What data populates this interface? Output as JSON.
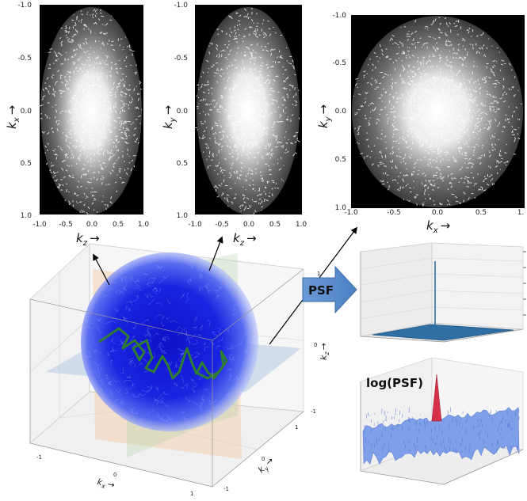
{
  "panels": [
    {
      "ylabel": "k",
      "ylabel_sub": "x",
      "xlabel": "k",
      "xlabel_sub": "z",
      "xticks": [
        "-1.0",
        "-0.5",
        "0.0",
        "0.5",
        "1.0"
      ],
      "yticks": [
        "-1.0",
        "-0.5",
        "0.0",
        "0.5",
        "1.0"
      ]
    },
    {
      "ylabel": "k",
      "ylabel_sub": "y",
      "xlabel": "k",
      "xlabel_sub": "z",
      "xticks": [
        "-1.0",
        "-0.5",
        "0.0",
        "0.5",
        "1.0"
      ],
      "yticks": [
        "-1.0",
        "-0.5",
        "0.0",
        "0.5",
        "1.0"
      ]
    },
    {
      "ylabel": "k",
      "ylabel_sub": "y",
      "xlabel": "k",
      "xlabel_sub": "x",
      "xticks": [
        "-1.0",
        "-0.5",
        "0.0",
        "0.5",
        "1."
      ],
      "yticks": [
        "-1.0",
        "-0.5",
        "0.0",
        "0.5",
        "1.0"
      ]
    }
  ],
  "arrow_symbol": "→",
  "psf_label": "PSF",
  "log_psf_label": "log(PSF)",
  "cube3d": {
    "kx_label": "k",
    "kx_sub": "x",
    "ky_label": "k",
    "ky_sub": "y",
    "kz_label": "k",
    "kz_sub": "z",
    "kx_ticks": [
      "-1",
      "0",
      "1"
    ],
    "ky_ticks": [
      "1",
      "0",
      "-1"
    ],
    "kz_ticks": [
      "1",
      "0",
      "-1"
    ]
  },
  "colors": {
    "trajectory_cloud": "#1a1adc",
    "trajectory_highlight": "#2e7d32",
    "psf_arrow": "#5b8fd1",
    "psf_surface": "#2f6fa3",
    "log_surface": "#7f9fe8",
    "log_peak": "#d6304a",
    "plane_orange": "#f4c8a0",
    "plane_green": "#b7d3b0",
    "plane_blue": "#b9cde3"
  }
}
